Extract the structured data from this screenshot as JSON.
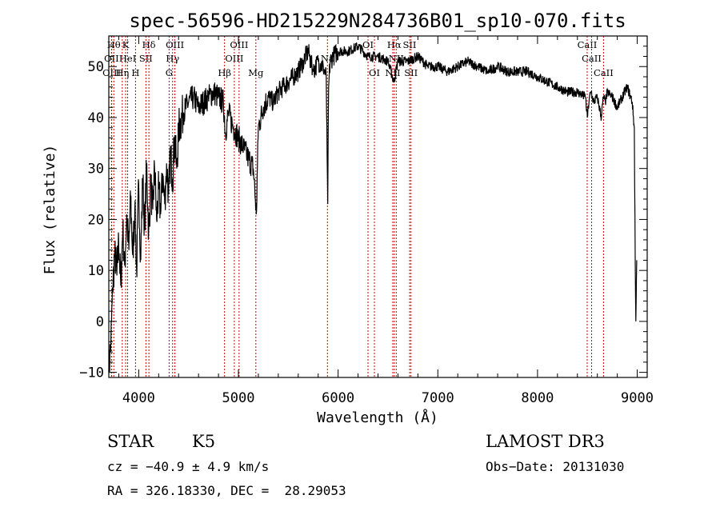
{
  "chart_data": {
    "type": "line",
    "title": "spec-56596-HD215229N284736B01_sp10-070.fits",
    "xlabel": "Wavelength (Å)",
    "ylabel": "Flux (relative)",
    "xlim": [
      3700,
      9100
    ],
    "ylim": [
      -11,
      56
    ],
    "xticks": [
      4000,
      5000,
      6000,
      7000,
      8000,
      9000
    ],
    "yticks": [
      -10,
      0,
      10,
      20,
      30,
      40,
      50
    ],
    "grid": false,
    "line_color": "#000000",
    "marker_color": "#cc0000",
    "series": [
      {
        "name": "flux",
        "x": [
          3700,
          3720,
          3740,
          3760,
          3780,
          3800,
          3820,
          3840,
          3860,
          3880,
          3900,
          3920,
          3940,
          3960,
          3980,
          4000,
          4020,
          4040,
          4060,
          4080,
          4100,
          4120,
          4140,
          4160,
          4180,
          4200,
          4220,
          4240,
          4260,
          4280,
          4300,
          4320,
          4340,
          4360,
          4380,
          4400,
          4450,
          4500,
          4550,
          4600,
          4650,
          4700,
          4750,
          4800,
          4850,
          4870,
          4900,
          4950,
          5000,
          5050,
          5100,
          5150,
          5180,
          5200,
          5250,
          5300,
          5350,
          5400,
          5450,
          5500,
          5550,
          5600,
          5650,
          5700,
          5750,
          5800,
          5850,
          5880,
          5895,
          5905,
          5920,
          5950,
          6000,
          6100,
          6200,
          6300,
          6400,
          6500,
          6560,
          6600,
          6700,
          6800,
          6900,
          7000,
          7100,
          7200,
          7300,
          7400,
          7500,
          7600,
          7700,
          7800,
          7900,
          8000,
          8100,
          8200,
          8300,
          8400,
          8480,
          8500,
          8520,
          8540,
          8560,
          8600,
          8640,
          8660,
          8680,
          8700,
          8750,
          8800,
          8850,
          8900,
          8950,
          8970,
          8985,
          8995
        ],
        "values": [
          -10,
          -4,
          6,
          14,
          9,
          16,
          7,
          18,
          11,
          21,
          14,
          24,
          13,
          22,
          10,
          27,
          12,
          28,
          18,
          31,
          17,
          27,
          22,
          30,
          20,
          26,
          21,
          29,
          23,
          31,
          25,
          33,
          28,
          36,
          30,
          38,
          41,
          43,
          44,
          42,
          43,
          44,
          45,
          44,
          43,
          37,
          41,
          38,
          36,
          34,
          32,
          30,
          21,
          38,
          42,
          44,
          43,
          45,
          46,
          47,
          48,
          49,
          51,
          53,
          49,
          51,
          50,
          48,
          23,
          46,
          51,
          52,
          53,
          53,
          54,
          52,
          52,
          51,
          47,
          51,
          51,
          52,
          50,
          50,
          49,
          50,
          51,
          50,
          49,
          50,
          49,
          49,
          49,
          48,
          47,
          46,
          45,
          45,
          44,
          40,
          44,
          45,
          43,
          44,
          40,
          44,
          43,
          45,
          44,
          42,
          44,
          46,
          43,
          38,
          0,
          12
        ]
      }
    ],
    "line_markers": [
      {
        "wl": 3750,
        "label": "Hθ",
        "row": 0
      },
      {
        "wl": 3869,
        "label": "K",
        "row": 0
      },
      {
        "wl": 4102,
        "label": "Hδ",
        "row": 0
      },
      {
        "wl": 4363,
        "label": "OIII",
        "row": 0
      },
      {
        "wl": 5007,
        "label": "OIII",
        "row": 0
      },
      {
        "wl": 6300,
        "label": "OI",
        "row": 0
      },
      {
        "wl": 6563,
        "label": "Hα",
        "row": 0
      },
      {
        "wl": 6717,
        "label": "SII",
        "row": 0
      },
      {
        "wl": 8498,
        "label": "CaII",
        "row": 0
      },
      {
        "wl": 3727,
        "label": "OII",
        "row": 1
      },
      {
        "wl": 3889,
        "label": "HeI",
        "row": 1
      },
      {
        "wl": 4072,
        "label": "SII",
        "row": 1
      },
      {
        "wl": 4340,
        "label": "Hγ",
        "row": 1
      },
      {
        "wl": 4959,
        "label": "OIII",
        "row": 1
      },
      {
        "wl": 5893,
        "label": "Na",
        "row": 1
      },
      {
        "wl": 6583,
        "label": "NII",
        "row": 1
      },
      {
        "wl": 8542,
        "label": "CaII",
        "row": 1
      },
      {
        "wl": 3729,
        "label": "OIII",
        "row": 2
      },
      {
        "wl": 3835,
        "label": "Hη",
        "row": 2
      },
      {
        "wl": 3968,
        "label": "H",
        "row": 2
      },
      {
        "wl": 4305,
        "label": "G",
        "row": 2
      },
      {
        "wl": 4861,
        "label": "Hβ",
        "row": 2
      },
      {
        "wl": 5175,
        "label": "Mg",
        "row": 2
      },
      {
        "wl": 6364,
        "label": "OI",
        "row": 2
      },
      {
        "wl": 6548,
        "label": "NII",
        "row": 2
      },
      {
        "wl": 6731,
        "label": "SII",
        "row": 2
      },
      {
        "wl": 8662,
        "label": "CaII",
        "row": 2
      }
    ]
  },
  "info": {
    "object_class": "STAR",
    "subclass": "K5",
    "survey": "LAMOST DR3",
    "redshift": "cz = −40.9 ± 4.9 km/s",
    "obs_date": "Obs−Date: 20131030",
    "coords": "RA = 326.18330, DEC =  28.29053"
  }
}
